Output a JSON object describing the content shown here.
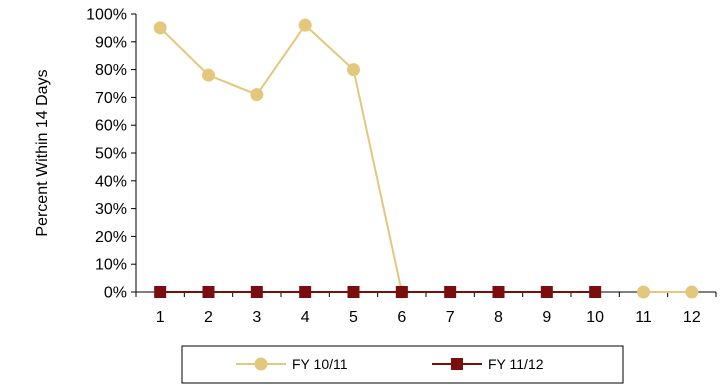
{
  "chart_data": {
    "type": "line",
    "title": "",
    "xlabel": "",
    "ylabel": "Percent Within 14 Days",
    "ylim": [
      0,
      100
    ],
    "y_ticks": [
      "0%",
      "10%",
      "20%",
      "30%",
      "40%",
      "50%",
      "60%",
      "70%",
      "80%",
      "90%",
      "100%"
    ],
    "x": [
      "1",
      "2",
      "3",
      "4",
      "5",
      "6",
      "7",
      "8",
      "9",
      "10",
      "11",
      "12"
    ],
    "grid": false,
    "legend_position": "bottom",
    "series": [
      {
        "name": "FY 10/11",
        "color": "#E3C77C",
        "marker": "circle",
        "values": [
          95,
          78,
          71,
          96,
          80,
          0,
          null,
          null,
          null,
          null,
          0,
          0
        ]
      },
      {
        "name": "FY 11/12",
        "color": "#7A0E0E",
        "marker": "square",
        "values": [
          0,
          0,
          0,
          0,
          0,
          0,
          0,
          0,
          0,
          0,
          null,
          null
        ]
      }
    ]
  }
}
